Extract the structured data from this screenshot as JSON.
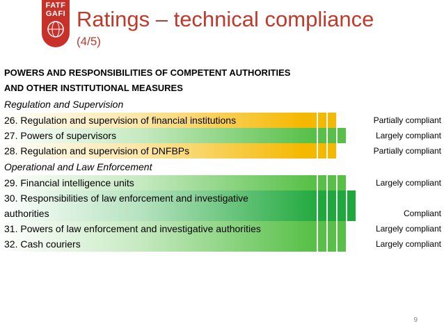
{
  "logo": {
    "line1": "FATF",
    "line2": "GAFI"
  },
  "title": "Ratings – technical compliance",
  "subtitle": "(4/5)",
  "heading_line1": "POWERS AND RESPONSIBILITIES OF COMPETENT AUTHORITIES",
  "heading_line2": "AND OTHER INSTITUTIONAL MEASURES",
  "sections": [
    {
      "title": "Regulation and Supervision"
    },
    {
      "title": "Operational and Law Enforcement"
    }
  ],
  "rows": [
    {
      "label": "26. Regulation and supervision of financial institutions",
      "label2": "",
      "rating": "Partially compliant",
      "level": 0.5
    },
    {
      "label": "27. Powers of supervisors",
      "label2": "",
      "rating": "Largely compliant",
      "level": 0.75
    },
    {
      "label": "28. Regulation and supervision of DNFBPs",
      "label2": "",
      "rating": "Partially compliant",
      "level": 0.5
    },
    {
      "label": "29. Financial intelligence units",
      "label2": "",
      "rating": "Largely compliant",
      "level": 0.75
    },
    {
      "label": "30. Responsibilities of law enforcement and investigative",
      "label2": "authorities",
      "rating": "Compliant",
      "level": 1.0
    },
    {
      "label": "31. Powers of law enforcement and investigative authorities",
      "label2": "",
      "rating": "Largely compliant",
      "level": 0.75
    },
    {
      "label": "32. Cash couriers",
      "label2": "",
      "rating": "Largely compliant",
      "level": 0.75
    }
  ],
  "colors": {
    "partial": "#f5b800",
    "largely": "#58c048",
    "compliant": "#1fa83c",
    "title": "#c0392b"
  },
  "page_number": "9"
}
